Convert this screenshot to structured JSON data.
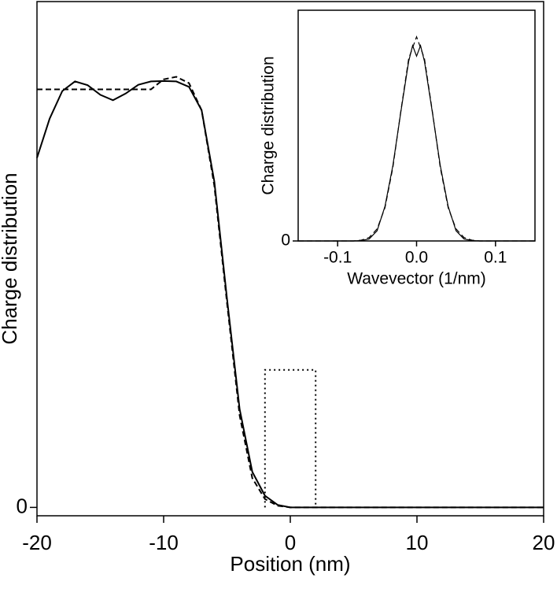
{
  "chart_data": [
    {
      "type": "line",
      "xlabel": "Position (nm)",
      "ylabel": "Charge distribution",
      "xlim": [
        -20,
        20
      ],
      "xticks": [
        -20,
        -10,
        0,
        10,
        20
      ],
      "ylim": [
        -0.02,
        1.21
      ],
      "yticks": [
        0
      ],
      "series": [
        {
          "color": "#000000",
          "dash": "solid",
          "x": [
            -20,
            -19,
            -18,
            -17,
            -16,
            -15,
            -14,
            -13,
            -12,
            -11,
            -10,
            -9,
            -8,
            -7,
            -6,
            -5,
            -4,
            -3,
            -2,
            -1,
            0,
            1,
            2,
            3,
            4,
            5,
            6,
            7,
            8,
            9,
            10,
            11,
            12,
            13,
            14,
            15,
            16,
            17,
            18,
            19,
            20
          ],
          "values": [
            0.836,
            0.93,
            0.996,
            1.019,
            1.01,
            0.987,
            0.974,
            0.99,
            1.011,
            1.019,
            1.02,
            1.019,
            1.006,
            0.95,
            0.78,
            0.5,
            0.235,
            0.085,
            0.028,
            0.006,
            0,
            0,
            0,
            0,
            0,
            0,
            0,
            0,
            0,
            0,
            0,
            0,
            0,
            0,
            0,
            0,
            0,
            0,
            0,
            0,
            0
          ]
        },
        {
          "color": "#000000",
          "dash": "dashed",
          "x": [
            -20,
            -19,
            -18,
            -17,
            -16,
            -15,
            -14,
            -13,
            -12,
            -11,
            -10,
            -9,
            -8,
            -7,
            -6,
            -5,
            -4,
            -3,
            -2,
            -1,
            0,
            1,
            2,
            3,
            4,
            5,
            6,
            7,
            8,
            9,
            10,
            11,
            12,
            13,
            14,
            15,
            16,
            17,
            18,
            19,
            20
          ],
          "values": [
            1,
            1,
            1,
            1,
            1,
            1,
            1,
            1,
            1,
            1,
            1.024,
            1.03,
            1.015,
            0.95,
            0.77,
            0.49,
            0.22,
            0.07,
            0.02,
            0.004,
            0,
            0,
            0,
            0,
            0,
            0,
            0,
            0,
            0,
            0,
            0,
            0,
            0,
            0,
            0,
            0,
            0,
            0,
            0,
            0,
            0
          ]
        },
        {
          "color": "#000000",
          "dash": "dotted",
          "x": [
            -2,
            -2,
            2,
            2
          ],
          "values": [
            0,
            0.329,
            0.329,
            0
          ]
        }
      ]
    },
    {
      "type": "line",
      "xlabel": "Wavevector (1/nm)",
      "ylabel": "Charge distribution",
      "xlim": [
        -0.15,
        0.15
      ],
      "xticks": [
        -0.1,
        {
          "value": 0,
          "label": "0.0"
        },
        0.1
      ],
      "ylim": [
        0,
        1.13
      ],
      "yticks": [
        0
      ],
      "series": [
        {
          "color": "#000000",
          "dash": "solid",
          "x": [
            -0.15,
            -0.08,
            -0.07,
            -0.06,
            -0.05,
            -0.04,
            -0.03,
            -0.02,
            -0.01,
            -0.005,
            0,
            0.005,
            0.01,
            0.02,
            0.03,
            0.04,
            0.05,
            0.06,
            0.07,
            0.08,
            0.15
          ],
          "values": [
            0,
            0,
            0.002,
            0.01,
            0.05,
            0.17,
            0.37,
            0.63,
            0.88,
            0.957,
            0.905,
            0.957,
            0.88,
            0.63,
            0.37,
            0.17,
            0.05,
            0.01,
            0.002,
            0,
            0
          ]
        },
        {
          "color": "#000000",
          "dash": "dashed",
          "x": [
            -0.15,
            -0.08,
            -0.07,
            -0.06,
            -0.05,
            -0.04,
            -0.03,
            -0.02,
            -0.01,
            0,
            0.01,
            0.02,
            0.03,
            0.04,
            0.05,
            0.06,
            0.07,
            0.08,
            0.15
          ],
          "values": [
            0,
            0,
            0.004,
            0.017,
            0.059,
            0.163,
            0.36,
            0.635,
            0.893,
            1,
            0.893,
            0.635,
            0.36,
            0.163,
            0.059,
            0.017,
            0.004,
            0,
            0
          ]
        }
      ]
    }
  ]
}
